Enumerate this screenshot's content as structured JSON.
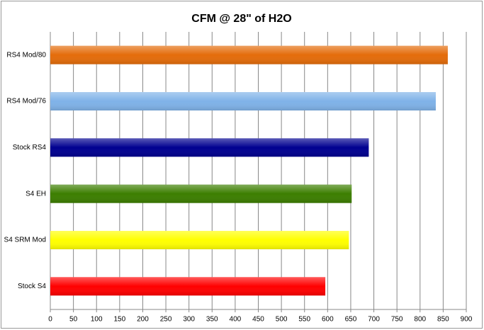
{
  "chart_data": {
    "type": "hbar",
    "title": "CFM @ 28\" of H2O",
    "categories": [
      "RS4 Mod/80",
      "RS4 Mod/76",
      "Stock RS4",
      "S4 EH",
      "S4 SRM Mod",
      "Stock S4"
    ],
    "values": [
      860,
      834,
      689,
      652,
      646,
      595
    ],
    "colors": [
      "#e46c0a",
      "#7fb2e8",
      "#000090",
      "#3c7e00",
      "#ffff00",
      "#ff0000"
    ],
    "xlim": [
      0,
      900
    ],
    "xticks": [
      0,
      50,
      100,
      150,
      200,
      250,
      300,
      350,
      400,
      450,
      500,
      550,
      600,
      650,
      700,
      750,
      800,
      850,
      900
    ],
    "grid": true
  }
}
